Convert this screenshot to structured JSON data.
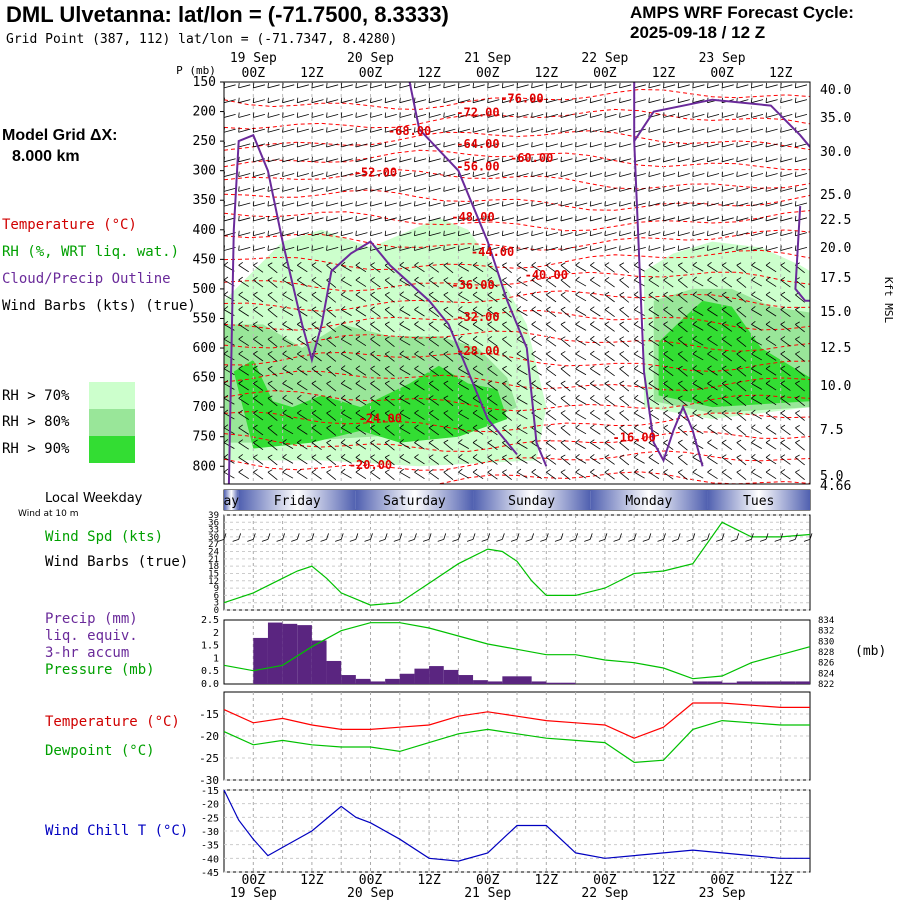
{
  "header": {
    "station_title": "DML Ulvetanna:  lat/lon = (-71.7500, 8.3333)",
    "grid_point": "Grid Point (387, 112) lat/lon = (-71.7347, 8.4280)",
    "cycle_line1": "AMPS WRF Forecast Cycle:",
    "cycle_line2": "2025-09-18 / 12  Z"
  },
  "left_panel": {
    "model_grid_line1": "Model Grid ΔX:",
    "model_grid_line2": "8.000 km",
    "legend_temperature": "Temperature (°C)",
    "legend_rh": "RH (%, WRT liq. wat.)",
    "legend_cloud": "Cloud/Precip Outline",
    "legend_wind": "Wind Barbs (kts) (true)",
    "rh70": "RH > 70%",
    "rh80": "RH > 80%",
    "rh90": "RH > 90%",
    "local_weekday": "Local Weekday",
    "wind_at": "Wind at 10 m",
    "wind_spd": "Wind Spd (kts)",
    "wind_barbs": "Wind Barbs (true)",
    "precip1": "Precip (mm)",
    "precip2": "liq. equiv.",
    "precip3": "3-hr accum",
    "pressure": "Pressure (mb)",
    "temperature": "Temperature (°C)",
    "dewpoint": "Dewpoint (°C)",
    "wind_chill": "Wind Chill T (°C)"
  },
  "colors": {
    "rh70": "#ccffcc",
    "rh80": "#99e699",
    "rh90": "#33dd33",
    "temperature": "#ff0000",
    "dewpoint": "#00c000",
    "cloud": "#6a2a9a",
    "wind_chill": "#0000c0",
    "precip": "#5a2580",
    "weekday_band": "#5060b0"
  },
  "axes": {
    "time_major": [
      "00Z",
      "12Z",
      "00Z",
      "12Z",
      "00Z",
      "12Z",
      "00Z",
      "12Z",
      "00Z",
      "12Z"
    ],
    "dates": [
      "19 Sep",
      "20 Sep",
      "21 Sep",
      "22 Sep",
      "23 Sep"
    ],
    "weekdays": [
      "Thursday",
      "Friday",
      "Saturday",
      "Sunday",
      "Monday",
      "Tuesday"
    ],
    "weekday_visible": [
      "ay",
      "Friday",
      "Saturday",
      "Sunday",
      "Monday",
      "Tues"
    ],
    "pressure_unit": "P (mb)",
    "pressure_ticks": [
      "150",
      "200",
      "250",
      "300",
      "350",
      "400",
      "450",
      "500",
      "550",
      "600",
      "650",
      "700",
      "750",
      "800"
    ],
    "height_ticks": [
      "40.0",
      "35.0",
      "30.0",
      "25.0",
      "22.5",
      "20.0",
      "17.5",
      "15.0",
      "12.5",
      "10.0",
      "7.5",
      "5.0",
      "4.66"
    ],
    "height_unit": "Kft MSL",
    "mb_unit": "(mb)"
  },
  "chart_data": [
    {
      "type": "heatmap",
      "panel": "cross-section",
      "ylim_mb": [
        150,
        830
      ],
      "x_hours": [
        0,
        120
      ],
      "temperature_labels": [
        "-76.00",
        "-72.00",
        "-68.00",
        "-64.00",
        "-60.00",
        "-56.00",
        "-52.00",
        "-48.00",
        "-44.00",
        "-40.00",
        "-36.00",
        "-32.00",
        "-28.00",
        "-24.00",
        "-20.00",
        "-16.00"
      ],
      "temperature_label_points": [
        {
          "label": "-76.00",
          "h": 61,
          "p": 185
        },
        {
          "label": "-72.00",
          "h": 52,
          "p": 208
        },
        {
          "label": "-68.00",
          "h": 38,
          "p": 240
        },
        {
          "label": "-64.00",
          "h": 52,
          "p": 262
        },
        {
          "label": "-60.00",
          "h": 63,
          "p": 285
        },
        {
          "label": "-56.00",
          "h": 52,
          "p": 300
        },
        {
          "label": "-52.00",
          "h": 31,
          "p": 310
        },
        {
          "label": "-48.00",
          "h": 51,
          "p": 385
        },
        {
          "label": "-44.00",
          "h": 55,
          "p": 444
        },
        {
          "label": "-40.00",
          "h": 66,
          "p": 483
        },
        {
          "label": "-36.00",
          "h": 51,
          "p": 500
        },
        {
          "label": "-32.00",
          "h": 52,
          "p": 554
        },
        {
          "label": "-28.00",
          "h": 52,
          "p": 612
        },
        {
          "label": "-24.00",
          "h": 32,
          "p": 726
        },
        {
          "label": "-20.00",
          "h": 30,
          "p": 805
        },
        {
          "label": "-16.00",
          "h": 84,
          "p": 758
        }
      ]
    },
    {
      "type": "line",
      "panel": "wind_speed",
      "ylabel": "Wind Spd (kts)",
      "ylim": [
        0,
        39
      ],
      "yticks": [
        "39",
        "36",
        "33",
        "30",
        "27",
        "24",
        "21",
        "18",
        "15",
        "12",
        "9",
        "6",
        "3",
        "0"
      ],
      "x_hours": [
        0,
        6,
        12,
        15,
        18,
        21,
        24,
        30,
        36,
        42,
        48,
        54,
        57,
        60,
        63,
        66,
        72,
        78,
        84,
        90,
        96,
        102,
        108,
        114,
        120
      ],
      "series": [
        {
          "values": [
            3,
            7,
            13,
            16,
            18,
            13,
            7,
            2,
            3,
            11,
            19,
            25,
            24,
            20,
            12,
            6,
            6,
            9,
            15,
            16,
            19,
            36,
            30,
            30,
            31
          ]
        }
      ]
    },
    {
      "type": "bar",
      "panel": "precip_pressure",
      "ylim_precip": [
        0,
        2.5
      ],
      "precip_ticks": [
        "2.5",
        "2",
        "1.5",
        "1",
        "0.5",
        "0.0"
      ],
      "pressure_ticks": [
        "834",
        "832",
        "830",
        "828",
        "826",
        "824",
        "822"
      ],
      "ylim_pressure": [
        822,
        834
      ],
      "x_hours": [
        6,
        9,
        12,
        15,
        18,
        21,
        24,
        27,
        30,
        33,
        36,
        39,
        42,
        45,
        48,
        51,
        54,
        57,
        60,
        63,
        66,
        69,
        72,
        75,
        78,
        81,
        84,
        87,
        90,
        93,
        96,
        99,
        102,
        105,
        108,
        111,
        114,
        117
      ],
      "precip": [
        1.8,
        2.4,
        2.35,
        2.3,
        1.7,
        0.9,
        0.35,
        0.2,
        0.1,
        0.2,
        0.4,
        0.6,
        0.7,
        0.55,
        0.35,
        0.15,
        0.1,
        0.3,
        0.3,
        0.1,
        0.05,
        0.05,
        0.0,
        0.0,
        0.0,
        0.0,
        0.0,
        0.0,
        0.0,
        0.0,
        0.1,
        0.1,
        0.05,
        0.1,
        0.1,
        0.1,
        0.1,
        0.1
      ],
      "pressure_x_hours": [
        0,
        6,
        12,
        18,
        24,
        30,
        36,
        42,
        48,
        54,
        60,
        66,
        72,
        78,
        84,
        90,
        96,
        102,
        108,
        114,
        120
      ],
      "pressure": [
        825.5,
        824.5,
        825.5,
        829,
        832,
        833.5,
        833.5,
        832.5,
        831,
        829.5,
        828.5,
        827.5,
        827.5,
        826.5,
        826,
        825,
        823,
        823.5,
        826,
        827.5,
        829
      ]
    },
    {
      "type": "line",
      "panel": "temperature_dewpoint",
      "ylim": [
        -30,
        -10
      ],
      "yticks": [
        "-15",
        "-20",
        "-25",
        "-30"
      ],
      "x_hours": [
        0,
        6,
        12,
        18,
        24,
        30,
        36,
        42,
        48,
        54,
        60,
        66,
        72,
        78,
        84,
        90,
        96,
        102,
        108,
        114,
        120
      ],
      "series": [
        {
          "name": "Temperature",
          "values": [
            -14,
            -17,
            -16,
            -17.5,
            -18.5,
            -18.5,
            -18,
            -17.5,
            -15.5,
            -14.5,
            -15.5,
            -16.5,
            -17,
            -17.5,
            -20.5,
            -18,
            -12.5,
            -12.5,
            -13,
            -13.5,
            -13.5
          ]
        },
        {
          "name": "Dewpoint",
          "values": [
            -19,
            -22,
            -21,
            -22,
            -22.5,
            -22.5,
            -23.5,
            -21.5,
            -19.5,
            -18.5,
            -19.5,
            -20.5,
            -21,
            -21.5,
            -26,
            -25.5,
            -18.5,
            -16.5,
            -17,
            -17.5,
            -17.5
          ]
        }
      ]
    },
    {
      "type": "line",
      "panel": "wind_chill",
      "ylabel": "Wind Chill T (°C)",
      "ylim": [
        -45,
        -15
      ],
      "yticks": [
        "-15",
        "-20",
        "-25",
        "-30",
        "-35",
        "-40",
        "-45"
      ],
      "x_hours": [
        0,
        3,
        6,
        9,
        12,
        18,
        24,
        27,
        30,
        36,
        42,
        48,
        54,
        60,
        66,
        72,
        78,
        84,
        90,
        96,
        102,
        108,
        114,
        120
      ],
      "series": [
        {
          "values": [
            -15,
            -26,
            -33,
            -39,
            -36,
            -30,
            -21,
            -25,
            -27,
            -33,
            -40,
            -41,
            -38,
            -28,
            -28,
            -38,
            -40,
            -39,
            -38,
            -37,
            -38,
            -39,
            -40,
            -40
          ]
        }
      ]
    }
  ]
}
